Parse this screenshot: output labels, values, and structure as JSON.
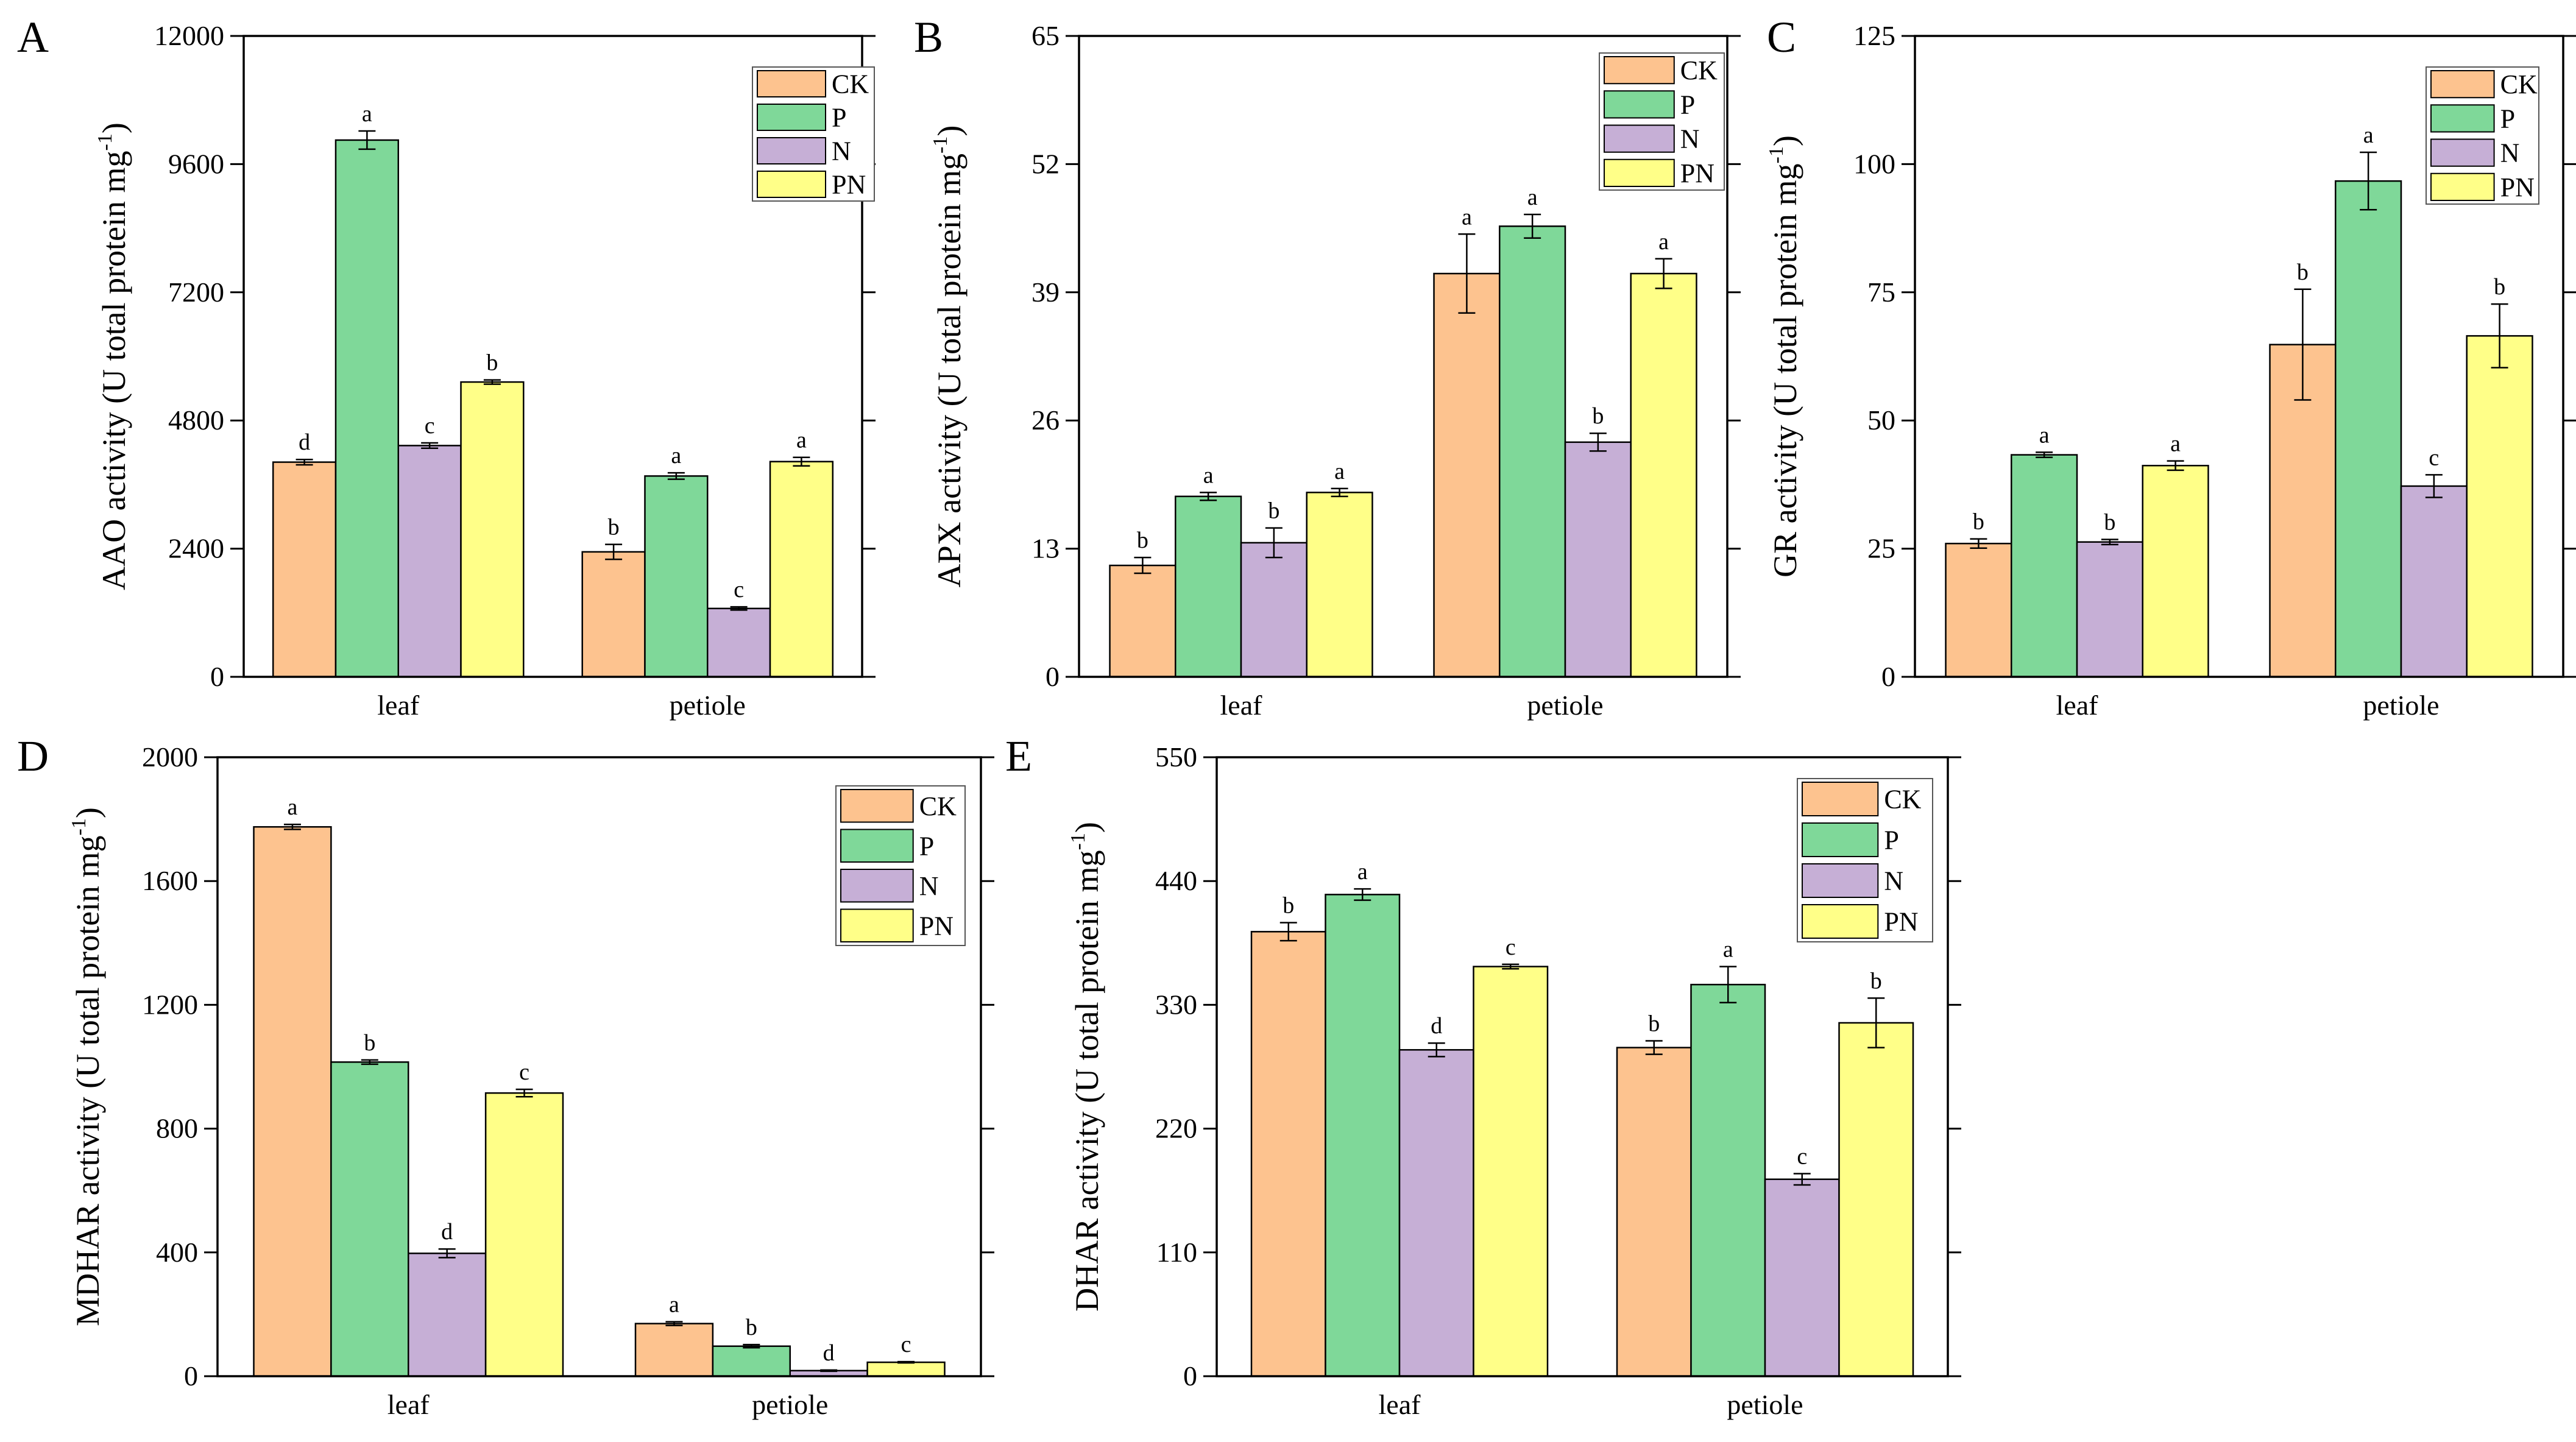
{
  "figure": {
    "colors": {
      "CK": "#FDC38F",
      "P": "#7FD899",
      "N": "#C6AFD6",
      "PN": "#FFFF88"
    },
    "groups": [
      "CK",
      "P",
      "N",
      "PN"
    ]
  },
  "chart_data": [
    {
      "type": "bar",
      "panel": "A",
      "title": "",
      "xlabel": "",
      "ylabel": "AAO activity (U total protein mg",
      "ylabel_sup": "-1",
      "ylabel_close": ")",
      "ylim": [
        0,
        12000
      ],
      "yticks": [
        0,
        2400,
        4800,
        7200,
        9600,
        12000
      ],
      "categories": [
        "leaf",
        "petiole"
      ],
      "series": [
        {
          "name": "CK",
          "values": [
            4020,
            2340
          ],
          "errors": [
            50,
            140
          ],
          "letters": [
            "d",
            "b"
          ]
        },
        {
          "name": "P",
          "values": [
            10050,
            3760
          ],
          "errors": [
            170,
            60
          ],
          "letters": [
            "a",
            "a"
          ]
        },
        {
          "name": "N",
          "values": [
            4330,
            1280
          ],
          "errors": [
            50,
            30
          ],
          "letters": [
            "c",
            "c"
          ]
        },
        {
          "name": "PN",
          "values": [
            5520,
            4030
          ],
          "errors": [
            40,
            80
          ],
          "letters": [
            "b",
            "a"
          ]
        }
      ]
    },
    {
      "type": "bar",
      "panel": "B",
      "title": "",
      "xlabel": "",
      "ylabel": "APX activity (U total protein mg",
      "ylabel_sup": "-1",
      "ylabel_close": ")",
      "ylim": [
        0,
        65
      ],
      "yticks": [
        0,
        13,
        26,
        39,
        52,
        65
      ],
      "categories": [
        "leaf",
        "petiole"
      ],
      "series": [
        {
          "name": "CK",
          "values": [
            11.3,
            40.9
          ],
          "errors": [
            0.8,
            4.0
          ],
          "letters": [
            "b",
            "a"
          ]
        },
        {
          "name": "P",
          "values": [
            18.3,
            45.7
          ],
          "errors": [
            0.4,
            1.2
          ],
          "letters": [
            "a",
            "a"
          ]
        },
        {
          "name": "N",
          "values": [
            13.6,
            23.8
          ],
          "errors": [
            1.5,
            0.9
          ],
          "letters": [
            "b",
            "b"
          ]
        },
        {
          "name": "PN",
          "values": [
            18.7,
            40.9
          ],
          "errors": [
            0.4,
            1.5
          ],
          "letters": [
            "a",
            "a"
          ]
        }
      ]
    },
    {
      "type": "bar",
      "panel": "C",
      "title": "",
      "xlabel": "",
      "ylabel": "GR activity (U total protein mg",
      "ylabel_sup": "-1",
      "ylabel_close": ")",
      "ylim": [
        0,
        125
      ],
      "yticks": [
        0,
        25,
        50,
        75,
        100,
        125
      ],
      "categories": [
        "leaf",
        "petiole"
      ],
      "series": [
        {
          "name": "CK",
          "values": [
            26.0,
            64.8
          ],
          "errors": [
            0.9,
            10.8
          ],
          "letters": [
            "b",
            "b"
          ]
        },
        {
          "name": "P",
          "values": [
            43.3,
            96.7
          ],
          "errors": [
            0.5,
            5.6
          ],
          "letters": [
            "a",
            "a"
          ]
        },
        {
          "name": "N",
          "values": [
            26.3,
            37.2
          ],
          "errors": [
            0.5,
            2.2
          ],
          "letters": [
            "b",
            "c"
          ]
        },
        {
          "name": "PN",
          "values": [
            41.2,
            66.5
          ],
          "errors": [
            0.9,
            6.2
          ],
          "letters": [
            "a",
            "b"
          ]
        }
      ]
    },
    {
      "type": "bar",
      "panel": "D",
      "title": "",
      "xlabel": "",
      "ylabel": "MDHAR activity (U total protein mg",
      "ylabel_sup": "-1",
      "ylabel_close": ")",
      "ylim": [
        0,
        2000
      ],
      "yticks": [
        0,
        400,
        800,
        1200,
        1600,
        2000
      ],
      "categories": [
        "leaf",
        "petiole"
      ],
      "series": [
        {
          "name": "CK",
          "values": [
            1775,
            170
          ],
          "errors": [
            8,
            6
          ],
          "letters": [
            "a",
            "a"
          ]
        },
        {
          "name": "P",
          "values": [
            1015,
            97
          ],
          "errors": [
            7,
            5
          ],
          "letters": [
            "b",
            "b"
          ]
        },
        {
          "name": "N",
          "values": [
            397,
            18
          ],
          "errors": [
            14,
            2
          ],
          "letters": [
            "d",
            "d"
          ]
        },
        {
          "name": "PN",
          "values": [
            915,
            45
          ],
          "errors": [
            12,
            2
          ],
          "letters": [
            "c",
            "c"
          ]
        }
      ]
    },
    {
      "type": "bar",
      "panel": "E",
      "title": "",
      "xlabel": "",
      "ylabel": "DHAR activity (U total protein mg",
      "ylabel_sup": "-1",
      "ylabel_close": ")",
      "ylim": [
        0,
        550
      ],
      "yticks": [
        0,
        110,
        220,
        330,
        440,
        550
      ],
      "categories": [
        "leaf",
        "petiole"
      ],
      "series": [
        {
          "name": "CK",
          "values": [
            395,
            292
          ],
          "errors": [
            8,
            6
          ],
          "letters": [
            "b",
            "b"
          ]
        },
        {
          "name": "P",
          "values": [
            428,
            348
          ],
          "errors": [
            5,
            16
          ],
          "letters": [
            "a",
            "a"
          ]
        },
        {
          "name": "N",
          "values": [
            290,
            175
          ],
          "errors": [
            6,
            5
          ],
          "letters": [
            "d",
            "c"
          ]
        },
        {
          "name": "PN",
          "values": [
            364,
            314
          ],
          "errors": [
            2,
            22
          ],
          "letters": [
            "c",
            "b"
          ]
        }
      ]
    }
  ]
}
